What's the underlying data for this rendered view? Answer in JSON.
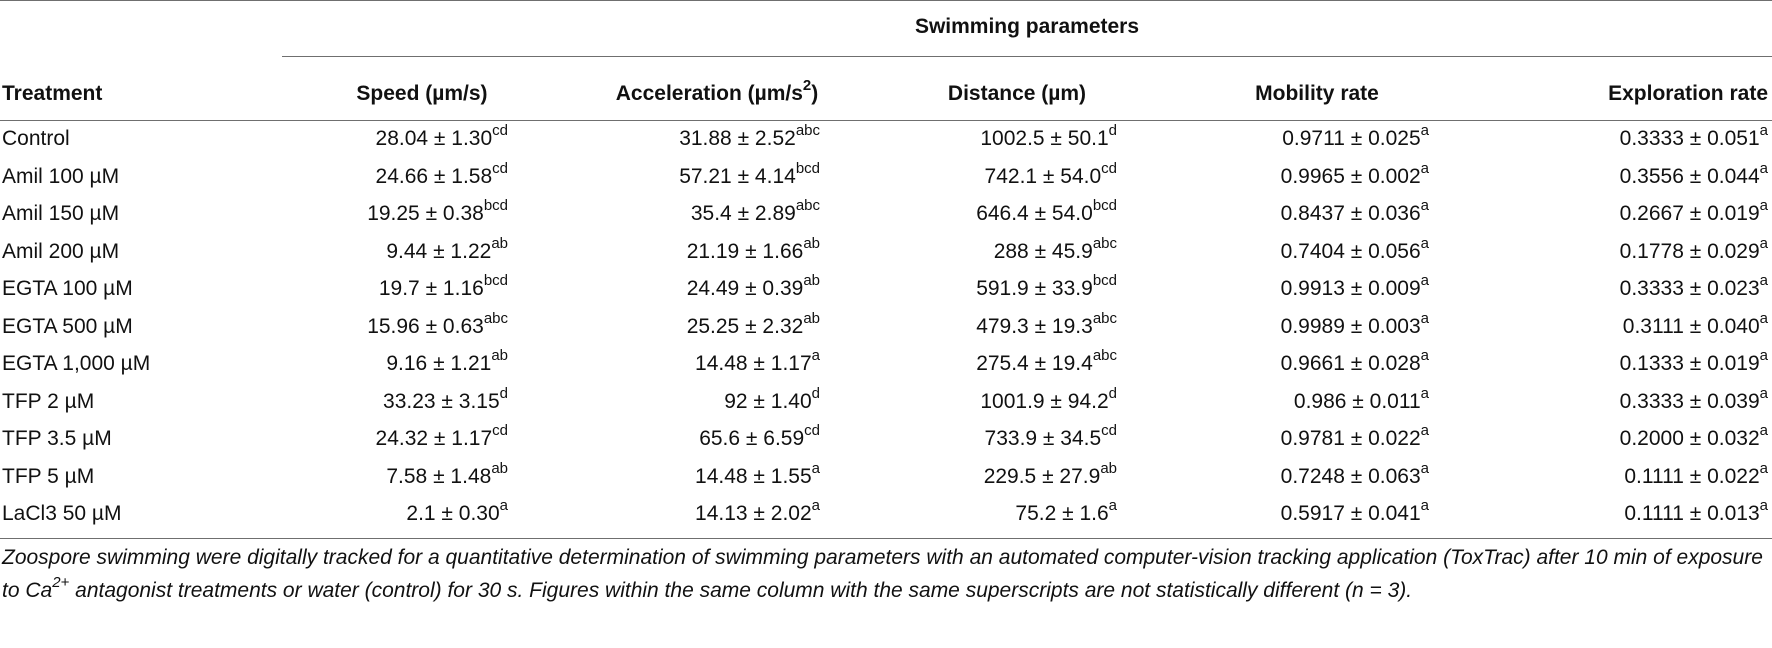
{
  "group_title": "Swimming parameters",
  "headers": {
    "treatment": "Treatment",
    "speed": "Speed (µm/s)",
    "acceleration_prefix": "Acceleration (µm/s",
    "acceleration_sup": "2",
    "acceleration_suffix": ")",
    "distance": "Distance (µm)",
    "mobility": "Mobility rate",
    "exploration": "Exploration rate"
  },
  "rows": [
    {
      "treatment": "Control",
      "speed": "28.04 ± 1.30",
      "speed_sup": "cd",
      "acceleration": "31.88 ± 2.52",
      "acceleration_sup": "abc",
      "distance": "1002.5 ± 50.1",
      "distance_sup": "d",
      "mobility": "0.9711 ± 0.025",
      "mobility_sup": "a",
      "exploration": "0.3333 ± 0.051",
      "exploration_sup": "a"
    },
    {
      "treatment": "Amil 100 µM",
      "speed": "24.66 ± 1.58",
      "speed_sup": "cd",
      "acceleration": "57.21 ± 4.14",
      "acceleration_sup": "bcd",
      "distance": "742.1 ± 54.0",
      "distance_sup": "cd",
      "mobility": "0.9965 ± 0.002",
      "mobility_sup": "a",
      "exploration": "0.3556 ± 0.044",
      "exploration_sup": "a"
    },
    {
      "treatment": "Amil 150 µM",
      "speed": "19.25 ± 0.38",
      "speed_sup": "bcd",
      "acceleration": "35.4 ± 2.89",
      "acceleration_sup": "abc",
      "distance": "646.4 ± 54.0",
      "distance_sup": "bcd",
      "mobility": "0.8437 ± 0.036",
      "mobility_sup": "a",
      "exploration": "0.2667 ± 0.019",
      "exploration_sup": "a"
    },
    {
      "treatment": "Amil 200 µM",
      "speed": "9.44 ± 1.22",
      "speed_sup": "ab",
      "acceleration": "21.19 ± 1.66",
      "acceleration_sup": "ab",
      "distance": "288 ± 45.9",
      "distance_sup": "abc",
      "mobility": "0.7404 ± 0.056",
      "mobility_sup": "a",
      "exploration": "0.1778 ± 0.029",
      "exploration_sup": "a"
    },
    {
      "treatment": "EGTA 100 µM",
      "speed": "19.7 ± 1.16",
      "speed_sup": "bcd",
      "acceleration": "24.49 ± 0.39",
      "acceleration_sup": "ab",
      "distance": "591.9 ± 33.9",
      "distance_sup": "bcd",
      "mobility": "0.9913 ± 0.009",
      "mobility_sup": "a",
      "exploration": "0.3333 ± 0.023",
      "exploration_sup": "a"
    },
    {
      "treatment": "EGTA 500 µM",
      "speed": "15.96 ± 0.63",
      "speed_sup": "abc",
      "acceleration": "25.25 ± 2.32",
      "acceleration_sup": "ab",
      "distance": "479.3 ± 19.3",
      "distance_sup": "abc",
      "mobility": "0.9989 ± 0.003",
      "mobility_sup": "a",
      "exploration": "0.3111 ± 0.040",
      "exploration_sup": "a"
    },
    {
      "treatment": "EGTA 1,000 µM",
      "speed": "9.16 ± 1.21",
      "speed_sup": "ab",
      "acceleration": "14.48 ± 1.17",
      "acceleration_sup": "a",
      "distance": "275.4 ± 19.4",
      "distance_sup": "abc",
      "mobility": "0.9661 ± 0.028",
      "mobility_sup": "a",
      "exploration": "0.1333 ± 0.019",
      "exploration_sup": "a"
    },
    {
      "treatment": "TFP 2 µM",
      "speed": "33.23 ± 3.15",
      "speed_sup": "d",
      "acceleration": "92 ± 1.40",
      "acceleration_sup": "d",
      "distance": "1001.9 ± 94.2",
      "distance_sup": "d",
      "mobility": "0.986 ± 0.011",
      "mobility_sup": "a",
      "exploration": "0.3333 ± 0.039",
      "exploration_sup": "a"
    },
    {
      "treatment": "TFP 3.5 µM",
      "speed": "24.32 ± 1.17",
      "speed_sup": "cd",
      "acceleration": "65.6 ± 6.59",
      "acceleration_sup": "cd",
      "distance": "733.9 ± 34.5",
      "distance_sup": "cd",
      "mobility": "0.9781 ± 0.022",
      "mobility_sup": "a",
      "exploration": "0.2000 ± 0.032",
      "exploration_sup": "a"
    },
    {
      "treatment": "TFP 5 µM",
      "speed": "7.58 ± 1.48",
      "speed_sup": "ab",
      "acceleration": "14.48 ± 1.55",
      "acceleration_sup": "a",
      "distance": "229.5 ± 27.9",
      "distance_sup": "ab",
      "mobility": "0.7248 ± 0.063",
      "mobility_sup": "a",
      "exploration": "0.1111 ± 0.022",
      "exploration_sup": "a"
    },
    {
      "treatment": "LaCl3 50 µM",
      "speed": "2.1 ± 0.30",
      "speed_sup": "a",
      "acceleration": "14.13 ± 2.02",
      "acceleration_sup": "a",
      "distance": "75.2 ± 1.6",
      "distance_sup": "a",
      "mobility": "0.5917 ± 0.041",
      "mobility_sup": "a",
      "exploration": "0.1111 ± 0.013",
      "exploration_sup": "a"
    }
  ],
  "footnote": {
    "part1": "Zoospore swimming were digitally tracked for a quantitative determination of swimming parameters with an automated computer-vision tracking application (ToxTrac) after 10 min of exposure to Ca",
    "sup": "2+",
    "part2": " antagonist treatments or water (control) for 30 s. Figures within the same column with the same superscripts are not statistically different (n = 3)."
  }
}
